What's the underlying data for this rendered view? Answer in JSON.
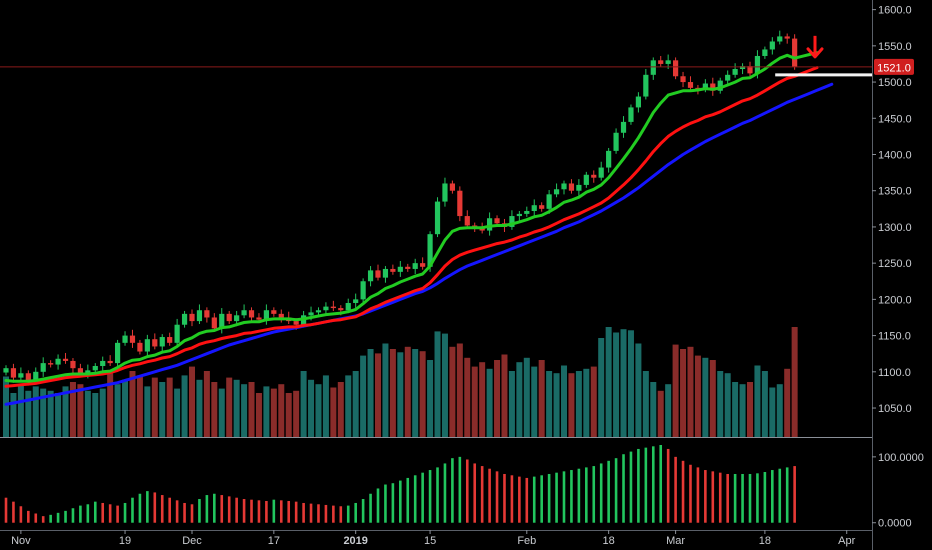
{
  "chart_data": {
    "type": "candlestick",
    "title": "",
    "price_axis": {
      "ylim": [
        1010,
        1605
      ],
      "ticks": [
        "1050.0",
        "1100.0",
        "1150.0",
        "1200.0",
        "1250.0",
        "1300.0",
        "1350.0",
        "1400.0",
        "1450.0",
        "1500.0",
        "1550.0",
        "1600.0"
      ],
      "tick_values": [
        1050,
        1100,
        1150,
        1200,
        1250,
        1300,
        1350,
        1400,
        1450,
        1500,
        1550,
        1600
      ],
      "last_price_label": "1521.0",
      "last_price": 1521.0
    },
    "time_axis": {
      "labels": [
        "Nov",
        "19",
        "Dec",
        "17",
        "2019",
        "15",
        "Feb",
        "18",
        "Mar",
        "18",
        "Apr"
      ],
      "label_index": [
        2,
        16,
        25,
        36,
        47,
        57,
        70,
        81,
        90,
        102,
        113
      ]
    },
    "candles_close": [
      1105,
      1092,
      1098,
      1088,
      1100,
      1112,
      1110,
      1118,
      1115,
      1105,
      1098,
      1102,
      1108,
      1115,
      1112,
      1140,
      1150,
      1140,
      1128,
      1145,
      1135,
      1148,
      1140,
      1165,
      1180,
      1170,
      1185,
      1175,
      1160,
      1180,
      1170,
      1178,
      1185,
      1175,
      1172,
      1185,
      1180,
      1175,
      1170,
      1165,
      1178,
      1182,
      1185,
      1190,
      1188,
      1185,
      1195,
      1200,
      1225,
      1240,
      1230,
      1242,
      1238,
      1245,
      1242,
      1250,
      1245,
      1290,
      1335,
      1360,
      1350,
      1315,
      1302,
      1300,
      1295,
      1312,
      1305,
      1300,
      1315,
      1318,
      1322,
      1330,
      1325,
      1345,
      1352,
      1360,
      1350,
      1358,
      1372,
      1368,
      1382,
      1405,
      1430,
      1445,
      1465,
      1480,
      1510,
      1530,
      1525,
      1530,
      1508,
      1500,
      1492,
      1490,
      1498,
      1488,
      1502,
      1510,
      1518,
      1522,
      1512,
      1536,
      1545,
      1556,
      1563,
      1560,
      1521
    ],
    "ema_fast": [
      1088,
      1087,
      1087,
      1087,
      1088,
      1090,
      1092,
      1094,
      1096,
      1097,
      1097,
      1097,
      1098,
      1100,
      1101,
      1106,
      1112,
      1116,
      1117,
      1121,
      1123,
      1127,
      1129,
      1135,
      1143,
      1147,
      1153,
      1156,
      1157,
      1161,
      1162,
      1165,
      1168,
      1169,
      1169,
      1172,
      1173,
      1173,
      1173,
      1172,
      1173,
      1175,
      1177,
      1179,
      1180,
      1181,
      1183,
      1186,
      1194,
      1203,
      1208,
      1215,
      1219,
      1224,
      1228,
      1232,
      1235,
      1246,
      1264,
      1282,
      1294,
      1298,
      1299,
      1299,
      1299,
      1301,
      1302,
      1302,
      1304,
      1307,
      1310,
      1314,
      1316,
      1321,
      1327,
      1334,
      1337,
      1341,
      1348,
      1352,
      1358,
      1368,
      1381,
      1394,
      1408,
      1423,
      1440,
      1458,
      1471,
      1482,
      1485,
      1488,
      1488,
      1489,
      1491,
      1490,
      1492,
      1496,
      1500,
      1505,
      1506,
      1512,
      1518,
      1526,
      1533,
      1537,
      1533
    ],
    "ema_mid": [
      1080,
      1081,
      1082,
      1083,
      1084,
      1086,
      1088,
      1090,
      1092,
      1093,
      1094,
      1095,
      1096,
      1097,
      1099,
      1102,
      1106,
      1109,
      1111,
      1114,
      1116,
      1119,
      1121,
      1125,
      1130,
      1133,
      1138,
      1141,
      1143,
      1146,
      1148,
      1150,
      1153,
      1154,
      1156,
      1158,
      1160,
      1161,
      1162,
      1162,
      1164,
      1165,
      1167,
      1169,
      1171,
      1172,
      1174,
      1176,
      1181,
      1187,
      1191,
      1196,
      1200,
      1204,
      1208,
      1212,
      1215,
      1223,
      1234,
      1246,
      1255,
      1261,
      1265,
      1268,
      1271,
      1274,
      1277,
      1279,
      1282,
      1286,
      1289,
      1293,
      1296,
      1300,
      1305,
      1310,
      1314,
      1318,
      1323,
      1328,
      1333,
      1340,
      1349,
      1358,
      1368,
      1379,
      1391,
      1404,
      1415,
      1425,
      1432,
      1438,
      1443,
      1447,
      1452,
      1455,
      1459,
      1464,
      1469,
      1474,
      1477,
      1482,
      1488,
      1494,
      1500,
      1505,
      1508
    ],
    "ema_slow": [
      1055,
      1057,
      1059,
      1061,
      1063,
      1065,
      1067,
      1069,
      1071,
      1073,
      1075,
      1077,
      1079,
      1081,
      1083,
      1085,
      1088,
      1091,
      1094,
      1097,
      1100,
      1103,
      1106,
      1109,
      1113,
      1117,
      1121,
      1125,
      1129,
      1133,
      1137,
      1140,
      1143,
      1146,
      1149,
      1152,
      1155,
      1157,
      1159,
      1161,
      1163,
      1165,
      1167,
      1169,
      1171,
      1173,
      1175,
      1177,
      1180,
      1184,
      1188,
      1192,
      1196,
      1200,
      1204,
      1208,
      1211,
      1216,
      1222,
      1229,
      1235,
      1241,
      1246,
      1250,
      1254,
      1258,
      1262,
      1266,
      1270,
      1274,
      1278,
      1282,
      1286,
      1290,
      1294,
      1299,
      1303,
      1307,
      1312,
      1317,
      1322,
      1328,
      1334,
      1340,
      1347,
      1354,
      1362,
      1370,
      1378,
      1386,
      1393,
      1400,
      1406,
      1412,
      1418,
      1423,
      1428,
      1433,
      1438,
      1443,
      1447,
      1452,
      1457,
      1462,
      1467,
      1472,
      1476
    ],
    "volume": [
      55,
      40,
      48,
      42,
      46,
      44,
      42,
      40,
      46,
      50,
      48,
      42,
      40,
      44,
      58,
      48,
      52,
      60,
      56,
      46,
      54,
      50,
      54,
      44,
      56,
      64,
      52,
      60,
      50,
      44,
      54,
      52,
      48,
      50,
      40,
      46,
      44,
      48,
      40,
      42,
      60,
      52,
      48,
      56,
      45,
      50,
      56,
      60,
      74,
      80,
      76,
      85,
      80,
      77,
      82,
      80,
      78,
      70,
      96,
      94,
      82,
      85,
      72,
      64,
      68,
      62,
      70,
      75,
      60,
      68,
      72,
      64,
      70,
      60,
      58,
      65,
      58,
      60,
      62,
      64,
      90,
      100,
      95,
      98,
      97,
      85,
      60,
      50,
      42,
      48,
      84,
      80,
      82,
      74,
      72,
      70,
      60,
      58,
      50,
      48,
      50,
      65,
      60,
      45,
      48,
      62,
      100
    ],
    "volume_bearish": [
      false,
      false,
      false,
      false,
      false,
      false,
      false,
      false,
      false,
      true,
      true,
      false,
      false,
      false,
      true,
      false,
      false,
      true,
      true,
      false,
      true,
      false,
      true,
      false,
      false,
      true,
      false,
      true,
      true,
      false,
      true,
      false,
      false,
      true,
      true,
      false,
      true,
      true,
      true,
      true,
      false,
      false,
      false,
      false,
      true,
      true,
      false,
      false,
      false,
      false,
      true,
      false,
      true,
      false,
      true,
      false,
      true,
      false,
      false,
      false,
      true,
      true,
      true,
      true,
      true,
      false,
      true,
      true,
      false,
      false,
      false,
      false,
      true,
      false,
      false,
      false,
      true,
      false,
      false,
      true,
      false,
      false,
      false,
      false,
      false,
      false,
      false,
      false,
      true,
      false,
      true,
      true,
      true,
      true,
      false,
      true,
      false,
      false,
      false,
      false,
      true,
      false,
      false,
      false,
      false,
      true,
      true
    ],
    "oscillator": {
      "ticks": [
        "100.0000",
        "0.0000"
      ],
      "tick_values": [
        100,
        0
      ],
      "ylim": [
        -8,
        118
      ],
      "values": [
        38,
        32,
        25,
        18,
        14,
        10,
        12,
        15,
        18,
        22,
        26,
        28,
        32,
        30,
        28,
        26,
        30,
        38,
        44,
        48,
        46,
        42,
        38,
        34,
        30,
        28,
        36,
        42,
        44,
        42,
        40,
        38,
        36,
        35,
        34,
        33,
        35,
        34,
        33,
        32,
        30,
        29,
        28,
        27,
        26,
        25,
        26,
        30,
        36,
        44,
        52,
        58,
        60,
        64,
        68,
        72,
        76,
        80,
        84,
        90,
        98,
        100,
        96,
        90,
        86,
        82,
        78,
        74,
        72,
        70,
        68,
        70,
        72,
        74,
        76,
        78,
        80,
        82,
        84,
        86,
        90,
        94,
        98,
        104,
        108,
        112,
        114,
        116,
        118,
        112,
        100,
        94,
        88,
        84,
        80,
        78,
        76,
        74,
        74,
        74,
        74,
        75,
        77,
        80,
        82,
        84,
        86
      ],
      "bearish": [
        true,
        true,
        true,
        true,
        true,
        true,
        false,
        false,
        false,
        false,
        false,
        false,
        false,
        true,
        true,
        true,
        false,
        false,
        false,
        false,
        true,
        true,
        true,
        true,
        true,
        true,
        false,
        false,
        false,
        true,
        true,
        true,
        true,
        true,
        true,
        true,
        false,
        true,
        true,
        true,
        true,
        true,
        true,
        true,
        true,
        true,
        false,
        false,
        false,
        false,
        false,
        false,
        false,
        false,
        false,
        false,
        false,
        false,
        false,
        false,
        false,
        false,
        true,
        true,
        true,
        true,
        true,
        true,
        true,
        true,
        true,
        false,
        false,
        false,
        false,
        false,
        false,
        false,
        false,
        false,
        false,
        false,
        false,
        false,
        false,
        false,
        false,
        false,
        false,
        true,
        true,
        true,
        true,
        true,
        true,
        true,
        true,
        true,
        false,
        false,
        false,
        false,
        false,
        false,
        false,
        false,
        true
      ]
    },
    "colors": {
      "bullish": "#22c55e",
      "bearish": "#e53935",
      "ema_fast": "#22cc22",
      "ema_mid": "#ff1111",
      "ema_slow": "#1515ff",
      "volume_bull": "#1a6b66",
      "volume_bear": "#8a2c2a",
      "background": "#000000",
      "axis_text": "#c9ccd1",
      "last_price_badge": "#d01f1f",
      "arrow": "#ff1a1a",
      "support_line": "#f2f2f2"
    }
  }
}
